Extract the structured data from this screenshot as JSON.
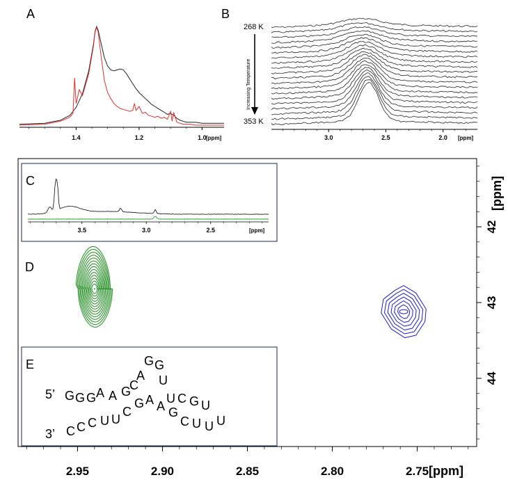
{
  "chart_data": [
    {
      "panel": "A",
      "type": "line",
      "xlabel": "[ppm]",
      "x_ticks": [
        "1.4",
        "1.2",
        "1.0"
      ],
      "xlim": [
        1.58,
        0.93
      ],
      "series": [
        {
          "color": "#222222",
          "x": [
            1.58,
            1.5,
            1.45,
            1.42,
            1.4,
            1.38,
            1.36,
            1.345,
            1.34,
            1.335,
            1.33,
            1.32,
            1.31,
            1.3,
            1.29,
            1.28,
            1.27,
            1.26,
            1.25,
            1.24,
            1.23,
            1.22,
            1.21,
            1.2,
            1.19,
            1.18,
            1.17,
            1.16,
            1.15,
            1.14,
            1.13,
            1.12,
            1.11,
            1.1,
            1.09,
            1.08,
            1.07,
            1.06,
            1.05,
            1.04,
            1.02,
            1.0,
            0.98,
            0.96,
            0.93
          ],
          "y": [
            0.01,
            0.02,
            0.05,
            0.1,
            0.18,
            0.32,
            0.55,
            0.82,
            0.95,
            1.0,
            0.96,
            0.82,
            0.68,
            0.6,
            0.56,
            0.55,
            0.56,
            0.57,
            0.56,
            0.52,
            0.47,
            0.42,
            0.37,
            0.33,
            0.3,
            0.27,
            0.24,
            0.21,
            0.19,
            0.17,
            0.15,
            0.13,
            0.11,
            0.12,
            0.1,
            0.07,
            0.05,
            0.04,
            0.03,
            0.03,
            0.03,
            0.02,
            0.02,
            0.02,
            0.02
          ]
        },
        {
          "color": "#e03030",
          "x": [
            1.58,
            1.5,
            1.45,
            1.42,
            1.41,
            1.405,
            1.4,
            1.39,
            1.38,
            1.36,
            1.345,
            1.34,
            1.335,
            1.33,
            1.32,
            1.31,
            1.3,
            1.29,
            1.28,
            1.27,
            1.26,
            1.25,
            1.24,
            1.23,
            1.22,
            1.215,
            1.21,
            1.2,
            1.19,
            1.18,
            1.17,
            1.16,
            1.15,
            1.14,
            1.13,
            1.12,
            1.11,
            1.1,
            1.095,
            1.09,
            1.08,
            1.07,
            1.06,
            1.05,
            1.04,
            1.02,
            1.0,
            0.98,
            0.96,
            0.93
          ],
          "y": [
            0.0,
            0.01,
            0.04,
            0.08,
            0.12,
            0.48,
            0.22,
            0.36,
            0.3,
            0.52,
            0.8,
            0.94,
            0.99,
            0.94,
            0.68,
            0.45,
            0.33,
            0.27,
            0.22,
            0.19,
            0.17,
            0.16,
            0.15,
            0.14,
            0.15,
            0.22,
            0.15,
            0.19,
            0.12,
            0.13,
            0.1,
            0.09,
            0.08,
            0.09,
            0.07,
            0.08,
            0.06,
            0.14,
            0.04,
            0.13,
            0.03,
            0.02,
            0.01,
            0.01,
            0.01,
            0.0,
            0.0,
            0.0,
            0.0,
            0.0
          ]
        }
      ]
    },
    {
      "panel": "B",
      "type": "line",
      "xlabel": "[ppm]",
      "x_ticks": [
        "3.0",
        "2.5",
        "2.0"
      ],
      "xlim": [
        3.5,
        1.7
      ],
      "temperature_top": "268 K",
      "temperature_bottom": "353 K",
      "arrow_label": "Increasing Temperature",
      "n_traces": 20,
      "peak_center_start": 2.72,
      "peak_center_end": 2.65,
      "peak_height_start": 0.05,
      "peak_height_end": 1.0
    },
    {
      "panel": "C",
      "type": "line",
      "xlabel": "[ppm]",
      "x_ticks": [
        "3.5",
        "3.0",
        "2.5"
      ],
      "xlim": [
        3.92,
        2.05
      ],
      "series": [
        {
          "color": "#222222",
          "description_peaks_ppm": [
            3.71,
            3.69,
            3.2,
            2.93
          ]
        },
        {
          "color": "#2a9a2a",
          "description_peaks_ppm": [
            2.93
          ]
        }
      ]
    },
    {
      "panel": "D",
      "type": "contour",
      "xlabel": "[ppm]",
      "ylabel": "[ppm]",
      "x_ticks": [
        "2.95",
        "2.90",
        "2.85",
        "2.80",
        "2.75"
      ],
      "y_ticks": [
        "42",
        "43",
        "44"
      ],
      "xlim": [
        2.985,
        2.715
      ],
      "ylim": [
        41.1,
        44.9
      ],
      "peaks": [
        {
          "color": "#1d8a1d",
          "x": 2.94,
          "y": 42.82,
          "levels": 14
        },
        {
          "color": "#1c1cc8",
          "x": 2.758,
          "y": 43.12,
          "levels": 6
        }
      ]
    }
  ],
  "panels": {
    "a": "A",
    "b": "B",
    "c": "C",
    "d": "D",
    "e": "E"
  },
  "rna_sequence": {
    "five_prime": "5’",
    "three_prime": "3’",
    "top_strand": [
      "G",
      "G",
      "G",
      "A",
      "A",
      "G",
      "C",
      "A",
      "G",
      "G",
      "U",
      "U",
      "C",
      "G",
      "U"
    ],
    "bottom_strand": [
      "C",
      "C",
      "C",
      "U",
      "U",
      "C",
      "G",
      "A",
      "A",
      "G",
      "C",
      "U",
      "U",
      "U"
    ]
  }
}
